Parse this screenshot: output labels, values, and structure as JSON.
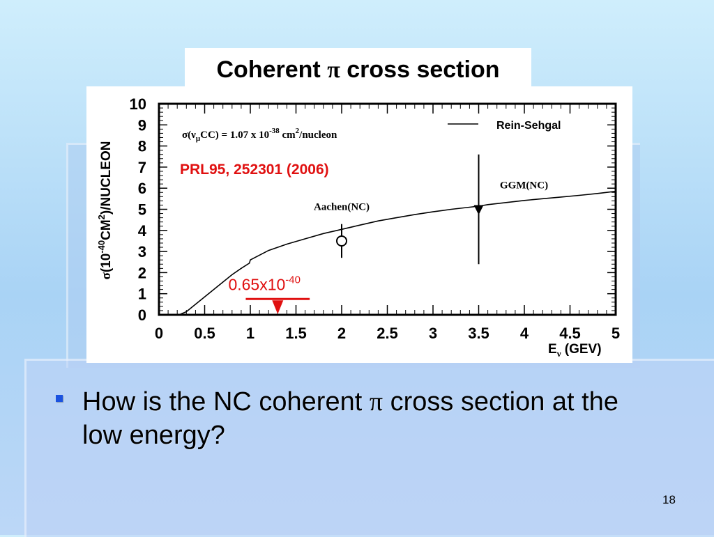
{
  "slide": {
    "title_prefix": "Coherent ",
    "title_symbol": "π",
    "title_suffix": " cross section",
    "bullet_prefix": "How is the NC coherent ",
    "bullet_symbol": "π",
    "bullet_suffix": " cross section at the low energy?",
    "slide_number": "18",
    "bullet_color": "#1a52e0"
  },
  "chart_data": {
    "type": "line",
    "xlim": [
      0,
      5
    ],
    "ylim": [
      0,
      10
    ],
    "x_ticks": [
      "0",
      "0.5",
      "1",
      "1.5",
      "2",
      "2.5",
      "3",
      "3.5",
      "4",
      "4.5",
      "5"
    ],
    "y_ticks": [
      "0",
      "1",
      "2",
      "3",
      "4",
      "5",
      "6",
      "7",
      "8",
      "9",
      "10"
    ],
    "xlabel": {
      "base": "E",
      "sub": "ν",
      "rest": " (GEV)"
    },
    "ylabel": {
      "sigma": "σ",
      "open": "(10",
      "exp": "-40",
      "mid": "CM",
      "exp2": "2",
      "close": ")/NUCLEON"
    },
    "legend": {
      "position": "top-right",
      "label": "Rein-Sehgal"
    },
    "series": [
      {
        "name": "Rein-Sehgal",
        "x": [
          0.22,
          0.3,
          0.4,
          0.5,
          0.6,
          0.7,
          0.8,
          0.9,
          0.99,
          1.0,
          1.2,
          1.4,
          1.6,
          1.8,
          2.0,
          2.2,
          2.4,
          2.6,
          2.8,
          3.0,
          3.2,
          3.4,
          3.5,
          3.6,
          3.8,
          4.0,
          4.2,
          4.4,
          4.6,
          4.8,
          5.0
        ],
        "y": [
          0.0,
          0.15,
          0.5,
          0.85,
          1.2,
          1.55,
          1.9,
          2.2,
          2.45,
          2.6,
          3.05,
          3.35,
          3.6,
          3.85,
          4.05,
          4.25,
          4.45,
          4.6,
          4.75,
          4.88,
          5.0,
          5.1,
          5.15,
          5.22,
          5.32,
          5.42,
          5.5,
          5.58,
          5.66,
          5.75,
          5.85
        ]
      }
    ],
    "points": [
      {
        "label": "Aachen(NC)",
        "x": 2.0,
        "y": 3.5,
        "yerr_low": 2.7,
        "yerr_high": 4.3,
        "marker": "open-circle"
      },
      {
        "label": "GGM(NC)",
        "x": 3.5,
        "y": 5.0,
        "yerr_low": 2.4,
        "yerr_high": 7.6,
        "marker": "down-triangle"
      }
    ],
    "upper_limit": {
      "x": 1.3,
      "xmin": 0.95,
      "xmax": 1.65,
      "y": 0.65,
      "label_base": "0.65x10",
      "label_exp": "-40",
      "color": "#e01010"
    },
    "annotation": {
      "prefix": "σ(ν",
      "sub": "μ",
      "mid": "CC)  = 1.07 x 10",
      "exp": "-38",
      "unit": " cm",
      "exp2": "2",
      "tail": "/nucleon"
    },
    "reference": {
      "text": "PRL95, 252301 (2006)",
      "color": "#e01010"
    }
  }
}
